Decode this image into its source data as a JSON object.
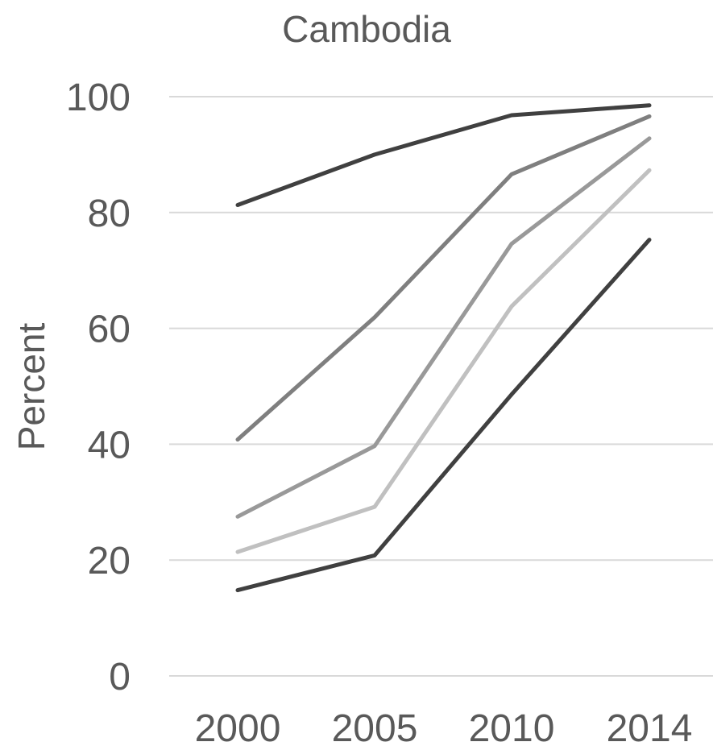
{
  "chart_data": {
    "type": "line",
    "title": "Cambodia",
    "xlabel": "",
    "ylabel": "Percent",
    "x": [
      "2000",
      "2005",
      "2010",
      "2014"
    ],
    "ylim": [
      0,
      100
    ],
    "yticks": [
      "0",
      "20",
      "40",
      "60",
      "80",
      "100"
    ],
    "grid": true,
    "legend": "none",
    "series": [
      {
        "color": "#404040",
        "values": [
          81.3,
          90.0,
          96.8,
          98.5
        ]
      },
      {
        "color": "#7f7f7f",
        "values": [
          40.8,
          61.9,
          86.6,
          96.6
        ]
      },
      {
        "color": "#999999",
        "values": [
          27.5,
          39.7,
          74.6,
          92.8
        ]
      },
      {
        "color": "#c0c0c0",
        "values": [
          21.4,
          29.2,
          63.8,
          87.3
        ]
      },
      {
        "color": "#404040",
        "values": [
          14.8,
          20.8,
          48.6,
          75.3
        ]
      }
    ]
  }
}
